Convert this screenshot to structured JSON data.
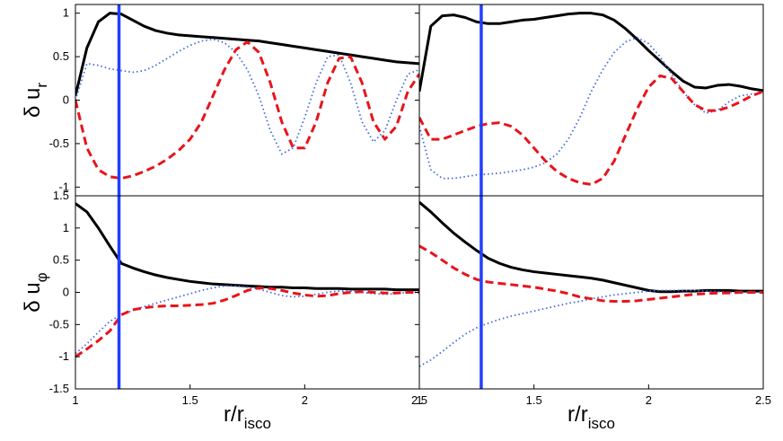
{
  "chart_data": [
    {
      "type": "line",
      "ylabel": "δ u",
      "ylabel_sub": "r",
      "xlim": [
        1,
        2.5
      ],
      "ylim": [
        -1.1,
        1.1
      ],
      "yticks": [
        -1,
        -0.5,
        0,
        0.5,
        1
      ],
      "vline": 1.19,
      "vline_color": "#2040ff",
      "x": [
        1,
        1.05,
        1.1,
        1.15,
        1.2,
        1.25,
        1.3,
        1.35,
        1.4,
        1.45,
        1.5,
        1.55,
        1.6,
        1.65,
        1.7,
        1.75,
        1.8,
        1.85,
        1.9,
        1.95,
        2,
        2.05,
        2.1,
        2.15,
        2.2,
        2.25,
        2.3,
        2.35,
        2.4,
        2.45,
        2.5
      ],
      "series": [
        {
          "color": "#000000",
          "style": "solid",
          "values": [
            0.05,
            0.6,
            0.9,
            1.0,
            0.99,
            0.92,
            0.85,
            0.8,
            0.77,
            0.75,
            0.74,
            0.73,
            0.72,
            0.71,
            0.7,
            0.69,
            0.68,
            0.66,
            0.64,
            0.62,
            0.6,
            0.58,
            0.56,
            0.54,
            0.52,
            0.5,
            0.48,
            0.46,
            0.44,
            0.43,
            0.42
          ]
        },
        {
          "color": "#4169e1",
          "style": "dotted",
          "values": [
            0,
            0.42,
            0.4,
            0.36,
            0.34,
            0.32,
            0.34,
            0.4,
            0.48,
            0.56,
            0.63,
            0.68,
            0.7,
            0.66,
            0.55,
            0.35,
            0.05,
            -0.35,
            -0.62,
            -0.55,
            -0.2,
            0.2,
            0.5,
            0.52,
            0.2,
            -0.25,
            -0.48,
            -0.35,
            0,
            0.3,
            0.35
          ]
        },
        {
          "color": "#e8141c",
          "style": "dashed",
          "values": [
            0,
            -0.55,
            -0.8,
            -0.88,
            -0.9,
            -0.87,
            -0.82,
            -0.76,
            -0.68,
            -0.58,
            -0.45,
            -0.25,
            0.05,
            0.35,
            0.58,
            0.67,
            0.55,
            0.2,
            -0.25,
            -0.55,
            -0.55,
            -0.25,
            0.2,
            0.48,
            0.5,
            0.2,
            -0.25,
            -0.45,
            -0.3,
            0.1,
            0.3
          ]
        }
      ]
    },
    {
      "type": "line",
      "xlim": [
        1,
        2.5
      ],
      "ylim": [
        -1.1,
        1.1
      ],
      "vline": 1.27,
      "vline_color": "#2040ff",
      "x": [
        1,
        1.05,
        1.1,
        1.15,
        1.2,
        1.25,
        1.3,
        1.35,
        1.4,
        1.45,
        1.5,
        1.55,
        1.6,
        1.65,
        1.7,
        1.75,
        1.8,
        1.85,
        1.9,
        1.95,
        2,
        2.05,
        2.1,
        2.15,
        2.2,
        2.25,
        2.3,
        2.35,
        2.4,
        2.45,
        2.5
      ],
      "series": [
        {
          "color": "#000000",
          "style": "solid",
          "values": [
            0.1,
            0.85,
            0.97,
            0.98,
            0.95,
            0.9,
            0.88,
            0.88,
            0.9,
            0.92,
            0.93,
            0.95,
            0.97,
            0.99,
            1.0,
            1.0,
            0.98,
            0.92,
            0.82,
            0.7,
            0.57,
            0.45,
            0.33,
            0.22,
            0.15,
            0.14,
            0.17,
            0.18,
            0.16,
            0.13,
            0.11
          ]
        },
        {
          "color": "#4169e1",
          "style": "dotted",
          "values": [
            -0.3,
            -0.8,
            -0.9,
            -0.9,
            -0.88,
            -0.86,
            -0.85,
            -0.84,
            -0.82,
            -0.8,
            -0.77,
            -0.72,
            -0.62,
            -0.45,
            -0.2,
            0.1,
            0.35,
            0.55,
            0.67,
            0.72,
            0.65,
            0.5,
            0.3,
            0.1,
            -0.05,
            -0.15,
            -0.12,
            -0.02,
            0.05,
            0.07,
            0.08
          ]
        },
        {
          "color": "#e8141c",
          "style": "dashed",
          "values": [
            -0.2,
            -0.45,
            -0.45,
            -0.4,
            -0.35,
            -0.3,
            -0.27,
            -0.26,
            -0.3,
            -0.4,
            -0.55,
            -0.7,
            -0.82,
            -0.9,
            -0.95,
            -0.97,
            -0.9,
            -0.7,
            -0.4,
            -0.1,
            0.15,
            0.28,
            0.25,
            0.1,
            -0.05,
            -0.12,
            -0.12,
            -0.08,
            -0.02,
            0.05,
            0.1
          ]
        }
      ]
    },
    {
      "type": "line",
      "ylabel": "δ u",
      "ylabel_sub": "φ",
      "xlabel": "r/r",
      "xlabel_sub": "isco",
      "xlim": [
        1,
        2.5
      ],
      "ylim": [
        -1.5,
        1.5
      ],
      "xticks": [
        1,
        1.5,
        2,
        2.5
      ],
      "yticks": [
        -1.5,
        -1,
        -0.5,
        0,
        0.5,
        1,
        1.5
      ],
      "vline": 1.19,
      "vline_color": "#2040ff",
      "x": [
        1,
        1.05,
        1.1,
        1.15,
        1.2,
        1.25,
        1.3,
        1.35,
        1.4,
        1.45,
        1.5,
        1.55,
        1.6,
        1.65,
        1.7,
        1.75,
        1.8,
        1.85,
        1.9,
        1.95,
        2,
        2.05,
        2.1,
        2.15,
        2.2,
        2.25,
        2.3,
        2.35,
        2.4,
        2.45,
        2.5
      ],
      "series": [
        {
          "color": "#000000",
          "style": "solid",
          "values": [
            1.38,
            1.25,
            1.0,
            0.72,
            0.45,
            0.38,
            0.32,
            0.27,
            0.23,
            0.2,
            0.17,
            0.15,
            0.13,
            0.12,
            0.11,
            0.1,
            0.09,
            0.08,
            0.08,
            0.07,
            0.07,
            0.06,
            0.06,
            0.06,
            0.05,
            0.05,
            0.05,
            0.05,
            0.04,
            0.04,
            0.04
          ]
        },
        {
          "color": "#4169e1",
          "style": "dotted",
          "values": [
            -0.95,
            -0.8,
            -0.62,
            -0.45,
            -0.35,
            -0.28,
            -0.22,
            -0.17,
            -0.12,
            -0.07,
            -0.02,
            0.03,
            0.07,
            0.1,
            0.1,
            0.08,
            0.05,
            0,
            -0.05,
            -0.07,
            -0.06,
            -0.03,
            0,
            0.02,
            0.02,
            0,
            -0.02,
            -0.03,
            -0.02,
            0,
            0
          ]
        },
        {
          "color": "#e8141c",
          "style": "dashed",
          "values": [
            -1.0,
            -0.88,
            -0.75,
            -0.6,
            -0.35,
            -0.27,
            -0.24,
            -0.22,
            -0.21,
            -0.21,
            -0.2,
            -0.19,
            -0.17,
            -0.12,
            -0.05,
            0.03,
            0.07,
            0.06,
            0.03,
            -0.01,
            -0.04,
            -0.06,
            -0.05,
            -0.02,
            0,
            0.01,
            0,
            -0.01,
            -0.01,
            0,
            0
          ]
        }
      ]
    },
    {
      "type": "line",
      "xlabel": "r/r",
      "xlabel_sub": "isco",
      "xlim": [
        1,
        2.5
      ],
      "ylim": [
        -1.5,
        1.5
      ],
      "xticks": [
        1,
        1.5,
        2,
        2.5
      ],
      "vline": 1.27,
      "vline_color": "#2040ff",
      "x": [
        1,
        1.05,
        1.1,
        1.15,
        1.2,
        1.25,
        1.3,
        1.35,
        1.4,
        1.45,
        1.5,
        1.55,
        1.6,
        1.65,
        1.7,
        1.75,
        1.8,
        1.85,
        1.9,
        1.95,
        2,
        2.05,
        2.1,
        2.15,
        2.2,
        2.25,
        2.3,
        2.35,
        2.4,
        2.45,
        2.5
      ],
      "series": [
        {
          "color": "#000000",
          "style": "solid",
          "values": [
            1.4,
            1.25,
            1.08,
            0.92,
            0.78,
            0.65,
            0.53,
            0.45,
            0.39,
            0.35,
            0.32,
            0.3,
            0.28,
            0.26,
            0.24,
            0.22,
            0.19,
            0.15,
            0.11,
            0.07,
            0.03,
            0.01,
            0.01,
            0.02,
            0.02,
            0.03,
            0.03,
            0.03,
            0.02,
            0.02,
            0.02
          ]
        },
        {
          "color": "#4169e1",
          "style": "dotted",
          "values": [
            -1.15,
            -1.05,
            -0.92,
            -0.78,
            -0.65,
            -0.55,
            -0.48,
            -0.42,
            -0.37,
            -0.33,
            -0.29,
            -0.25,
            -0.21,
            -0.17,
            -0.14,
            -0.1,
            -0.07,
            -0.04,
            -0.02,
            0,
            0.02,
            0.03,
            0.03,
            0.03,
            0.03,
            0.02,
            0.01,
            0,
            0,
            0,
            0
          ]
        },
        {
          "color": "#e8141c",
          "style": "dashed",
          "values": [
            0.72,
            0.62,
            0.5,
            0.38,
            0.28,
            0.2,
            0.16,
            0.14,
            0.12,
            0.1,
            0.08,
            0.05,
            0.02,
            -0.02,
            -0.07,
            -0.1,
            -0.13,
            -0.14,
            -0.14,
            -0.13,
            -0.11,
            -0.09,
            -0.07,
            -0.05,
            -0.03,
            -0.02,
            -0.01,
            -0.01,
            0,
            0,
            0
          ]
        }
      ]
    }
  ]
}
